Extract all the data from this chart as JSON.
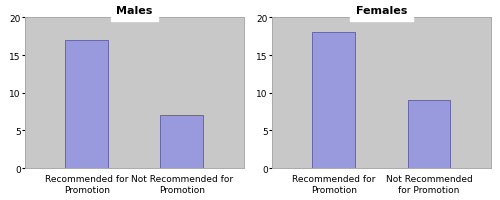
{
  "males": {
    "title": "Males",
    "categories": [
      "Recommended for\nPromotion",
      "Not Recommended for\nPromotion"
    ],
    "values": [
      17,
      7
    ],
    "ylim": [
      0,
      20
    ],
    "yticks": [
      0,
      5,
      10,
      15,
      20
    ]
  },
  "females": {
    "title": "Females",
    "categories": [
      "Recommended for\nPromotion",
      "Not Recommended\nfor Promotion"
    ],
    "values": [
      18,
      9
    ],
    "ylim": [
      0,
      20
    ],
    "yticks": [
      0,
      5,
      10,
      15,
      20
    ]
  },
  "bar_color": "#9999dd",
  "bar_edge_color": "#6666aa",
  "plot_bg_color": "#c8c8c8",
  "fig_bg_color": "#ffffff",
  "title_fontsize": 8,
  "tick_fontsize": 6.5,
  "label_fontsize": 6.5
}
